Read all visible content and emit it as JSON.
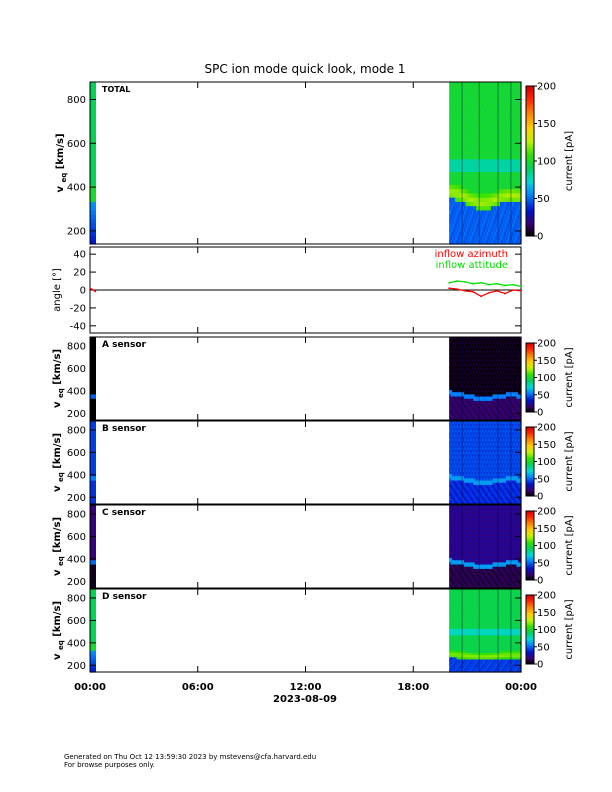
{
  "title": "SPC ion mode quick look, mode 1",
  "x_axis": {
    "tick_labels": [
      "00:00",
      "06:00",
      "12:00",
      "18:00",
      "00:00"
    ],
    "date_label": "2023-08-09"
  },
  "colorbar": {
    "label": "current [pA]",
    "range": [
      0,
      200
    ],
    "ticks_total": [
      0,
      50,
      100,
      150,
      200
    ],
    "ticks_sensor": [
      0,
      50,
      100,
      150,
      200
    ]
  },
  "panels": {
    "total": {
      "label": "TOTAL",
      "ylabel_main": "v",
      "ylabel_sub": "eq",
      "ylabel_unit": "[km/s]",
      "yticks": [
        200,
        400,
        600,
        800
      ]
    },
    "angle": {
      "ylabel": "angle [°]",
      "yticks": [
        -40,
        -20,
        0,
        20,
        40
      ],
      "legend": [
        {
          "name": "inflow azimuth",
          "color": "#ff0000"
        },
        {
          "name": "inflow attitude",
          "color": "#00e000"
        }
      ]
    },
    "a": {
      "label": "A sensor",
      "ylabel_main": "v",
      "ylabel_sub": "eq",
      "ylabel_unit": "[km/s]",
      "yticks": [
        200,
        400,
        600,
        800
      ]
    },
    "b": {
      "label": "B sensor",
      "ylabel_main": "v",
      "ylabel_sub": "eq",
      "ylabel_unit": "[km/s]",
      "yticks": [
        200,
        400,
        600,
        800
      ]
    },
    "c": {
      "label": "C sensor",
      "ylabel_main": "v",
      "ylabel_sub": "eq",
      "ylabel_unit": "[km/s]",
      "yticks": [
        200,
        400,
        600,
        800
      ]
    },
    "d": {
      "label": "D sensor",
      "ylabel_main": "v",
      "ylabel_sub": "eq",
      "ylabel_unit": "[km/s]",
      "yticks": [
        200,
        400,
        600,
        800
      ]
    }
  },
  "footer": {
    "line1": "Generated on Thu Oct 12 13:59:30 2023 by mstevens@cfa.harvard.edu",
    "line2": "For browse purposes only."
  },
  "chart_data": {
    "type": "heatmap",
    "title": "SPC ion mode quick look, mode 1",
    "x": {
      "unit": "time",
      "range": [
        "2023-08-09 00:00",
        "2023-08-10 00:00"
      ],
      "data_start": "2023-08-09 20:00"
    },
    "y": {
      "unit": "km/s",
      "range": [
        140,
        880
      ]
    },
    "colormap_range_pA": [
      0,
      200
    ],
    "panels": [
      {
        "name": "TOTAL",
        "bulk_speed_kms": [
          380,
          370,
          345,
          330,
          335,
          355,
          365,
          360
        ],
        "background_level_pA": 60
      },
      {
        "name": "inflow azimuth",
        "type": "line",
        "unit": "deg",
        "values": [
          2,
          1,
          -1,
          -2,
          -7,
          -3,
          -1,
          -4,
          0,
          -1
        ]
      },
      {
        "name": "inflow attitude",
        "type": "line",
        "unit": "deg",
        "values": [
          8,
          10,
          9,
          7,
          8,
          6,
          7,
          5,
          6,
          4
        ]
      },
      {
        "name": "A sensor",
        "bulk_speed_kms": [
          385,
          375,
          350,
          335,
          340,
          358,
          368,
          362
        ],
        "background_level_pA": 0
      },
      {
        "name": "B sensor",
        "bulk_speed_kms": [
          385,
          375,
          350,
          335,
          340,
          358,
          368,
          362
        ],
        "background_level_pA": 25
      },
      {
        "name": "C sensor",
        "bulk_speed_kms": [
          385,
          375,
          350,
          335,
          340,
          358,
          368,
          362
        ],
        "background_level_pA": 10
      },
      {
        "name": "D sensor",
        "bulk_speed_kms": [
          300,
          295,
          285,
          280,
          282,
          290,
          295,
          292
        ],
        "background_level_pA": 65
      }
    ]
  }
}
